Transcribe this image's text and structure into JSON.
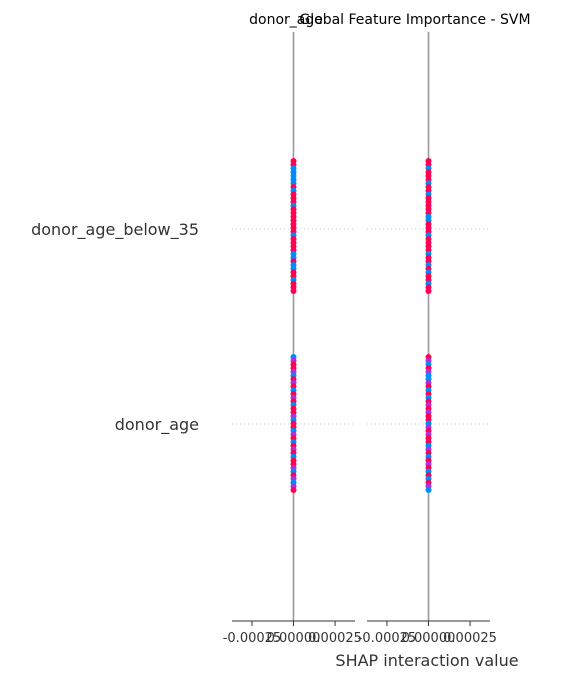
{
  "chart_data": {
    "type": "scatter",
    "title_left": "donor_age",
    "title_right": "Global Feature Importance - SVM",
    "features": [
      "donor_age_below_35",
      "donor_age"
    ],
    "xlabel": "SHAP interaction value",
    "xticks": [
      "-0.00025",
      "0.00000",
      "0.00025"
    ],
    "xtick_values": [
      -0.00025,
      0.0,
      0.00025
    ],
    "xlim": [
      -0.00037,
      0.00037
    ],
    "panels": [
      {
        "name": "donor_age",
        "rows": [
          {
            "feature": "donor_age_below_35",
            "value": 0.0,
            "colors": [
              "red",
              "red",
              "blue",
              "blue",
              "blue",
              "blue",
              "blue",
              "red",
              "blue",
              "red",
              "red",
              "red",
              "blue",
              "red",
              "red",
              "red",
              "red",
              "red",
              "red",
              "red",
              "blue",
              "red",
              "red",
              "red",
              "red",
              "blue",
              "blue",
              "red",
              "blue",
              "blue",
              "red",
              "red",
              "blue",
              "red",
              "red",
              "red"
            ]
          },
          {
            "feature": "donor_age",
            "value": 0.0,
            "colors": [
              "blue",
              "purple",
              "red",
              "red",
              "purple",
              "blue",
              "red",
              "purple",
              "red",
              "blue",
              "red",
              "purple",
              "red",
              "blue",
              "red",
              "red",
              "purple",
              "blue",
              "red",
              "red",
              "blue",
              "purple",
              "red",
              "blue",
              "red",
              "purple",
              "red",
              "blue",
              "red",
              "red",
              "purple",
              "blue",
              "red",
              "purple",
              "blue",
              "purple",
              "red"
            ]
          }
        ]
      },
      {
        "name": "Global Feature Importance - SVM",
        "rows": [
          {
            "feature": "donor_age_below_35",
            "value": 0.0,
            "colors": [
              "red",
              "red",
              "blue",
              "red",
              "red",
              "red",
              "blue",
              "red",
              "red",
              "blue",
              "red",
              "red",
              "red",
              "red",
              "red",
              "blue",
              "blue",
              "red",
              "red",
              "red",
              "blue",
              "red",
              "red",
              "red",
              "red",
              "blue",
              "red",
              "red",
              "blue",
              "red",
              "blue",
              "red",
              "red",
              "blue",
              "red",
              "red"
            ]
          },
          {
            "feature": "donor_age",
            "value": 0.0,
            "colors": [
              "red",
              "purple",
              "blue",
              "red",
              "purple",
              "blue",
              "blue",
              "purple",
              "red",
              "blue",
              "red",
              "blue",
              "red",
              "purple",
              "red",
              "purple",
              "red",
              "red",
              "blue",
              "purple",
              "red",
              "purple",
              "red",
              "red",
              "blue",
              "purple",
              "red",
              "blue",
              "red",
              "purple",
              "red",
              "blue",
              "red",
              "blue",
              "red",
              "purple",
              "blue"
            ]
          }
        ]
      }
    ],
    "colors": {
      "red": "#ff0052",
      "blue": "#008bfb",
      "purple": "#b12fd6",
      "axis": "#999999",
      "text": "#333333",
      "grid": "#cccccc"
    }
  }
}
